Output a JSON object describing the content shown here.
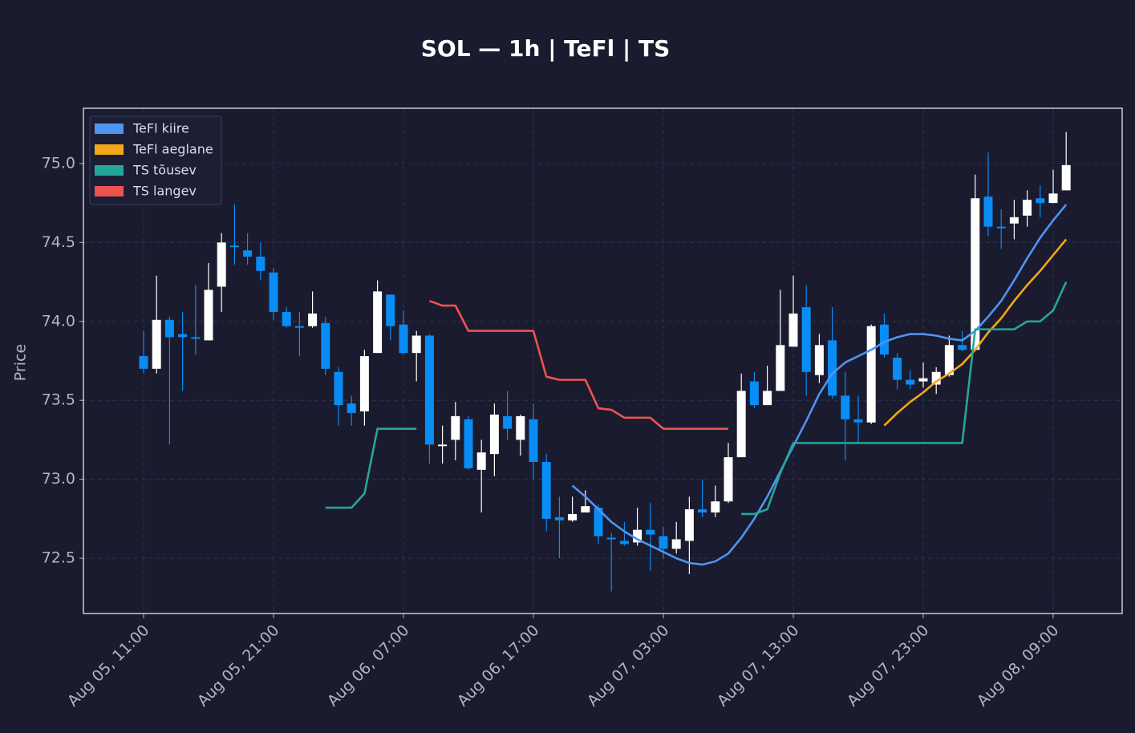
{
  "chart_data": {
    "type": "candlestick",
    "title": "SOL — 1h  |  TeFl  |  TS",
    "ylabel": "Price",
    "categories": [
      "Aug 05, 11:00",
      null,
      null,
      null,
      null,
      null,
      null,
      null,
      null,
      null,
      "Aug 05, 21:00",
      null,
      null,
      null,
      null,
      null,
      null,
      null,
      null,
      null,
      "Aug 06, 07:00",
      null,
      null,
      null,
      null,
      null,
      null,
      null,
      null,
      null,
      "Aug 06, 17:00",
      null,
      null,
      null,
      null,
      null,
      null,
      null,
      null,
      null,
      "Aug 07, 03:00",
      null,
      null,
      null,
      null,
      null,
      null,
      null,
      null,
      null,
      "Aug 07, 13:00",
      null,
      null,
      null,
      null,
      null,
      null,
      null,
      null,
      null,
      "Aug 07, 23:00",
      null,
      null,
      null,
      null,
      null,
      null,
      null,
      null,
      null,
      "Aug 08, 09:00",
      null
    ],
    "open": [
      73.78,
      73.7,
      74.01,
      73.92,
      73.9,
      73.88,
      74.22,
      74.48,
      74.45,
      74.41,
      74.31,
      74.06,
      73.97,
      73.97,
      73.99,
      73.68,
      73.48,
      73.43,
      73.8,
      74.17,
      73.98,
      73.8,
      73.91,
      73.21,
      73.25,
      73.38,
      73.06,
      73.16,
      73.4,
      73.25,
      73.38,
      73.11,
      72.76,
      72.74,
      72.79,
      72.82,
      72.63,
      72.61,
      72.6,
      72.68,
      72.64,
      72.56,
      72.61,
      72.81,
      72.79,
      72.86,
      73.14,
      73.62,
      73.47,
      73.56,
      73.84,
      74.09,
      73.66,
      73.88,
      73.53,
      73.38,
      73.36,
      73.98,
      73.77,
      73.63,
      73.62,
      73.6,
      73.66,
      73.85,
      73.82,
      74.79,
      74.6,
      74.62,
      74.67,
      74.78,
      74.75,
      74.83
    ],
    "high": [
      73.94,
      74.29,
      74.03,
      74.06,
      74.23,
      74.37,
      74.56,
      74.74,
      74.56,
      74.5,
      74.34,
      74.09,
      74.06,
      74.19,
      74.03,
      73.71,
      73.53,
      73.82,
      74.26,
      74.17,
      74.07,
      73.94,
      73.92,
      73.34,
      73.49,
      73.4,
      73.25,
      73.48,
      73.56,
      73.41,
      73.48,
      73.16,
      72.89,
      72.89,
      72.93,
      72.84,
      72.66,
      72.73,
      72.82,
      72.85,
      72.7,
      72.73,
      72.89,
      73.0,
      72.96,
      73.23,
      73.67,
      73.68,
      73.72,
      74.2,
      74.29,
      74.23,
      73.92,
      74.09,
      73.68,
      73.53,
      73.98,
      74.05,
      73.8,
      73.69,
      73.74,
      73.71,
      73.91,
      73.94,
      74.93,
      75.07,
      74.71,
      74.77,
      74.83,
      74.86,
      74.96,
      75.2
    ],
    "low": [
      73.67,
      73.67,
      73.22,
      73.56,
      73.79,
      73.88,
      74.06,
      74.36,
      74.36,
      74.26,
      74.01,
      73.96,
      73.78,
      73.96,
      73.66,
      73.34,
      73.34,
      73.34,
      73.8,
      73.88,
      73.79,
      73.62,
      73.1,
      73.1,
      73.12,
      73.06,
      72.79,
      73.02,
      73.25,
      73.15,
      73.0,
      72.67,
      72.5,
      72.73,
      72.79,
      72.59,
      72.29,
      72.58,
      72.58,
      72.42,
      72.5,
      72.53,
      72.4,
      72.76,
      72.76,
      72.85,
      73.14,
      73.45,
      73.47,
      73.56,
      73.84,
      73.53,
      73.61,
      73.51,
      73.12,
      73.23,
      73.35,
      73.77,
      73.57,
      73.57,
      73.58,
      73.54,
      73.65,
      73.81,
      73.82,
      74.54,
      74.46,
      74.52,
      74.6,
      74.66,
      74.75,
      74.83
    ],
    "close": [
      73.7,
      74.01,
      73.9,
      73.9,
      73.89,
      74.2,
      74.5,
      74.47,
      74.41,
      74.32,
      74.06,
      73.97,
      73.96,
      74.05,
      73.7,
      73.47,
      73.42,
      73.78,
      74.19,
      73.97,
      73.8,
      73.91,
      73.22,
      73.22,
      73.4,
      73.07,
      73.17,
      73.41,
      73.32,
      73.4,
      73.11,
      72.75,
      72.74,
      72.78,
      72.83,
      72.64,
      72.62,
      72.59,
      72.68,
      72.65,
      72.56,
      72.62,
      72.81,
      72.79,
      72.86,
      73.14,
      73.56,
      73.47,
      73.56,
      73.85,
      74.05,
      73.68,
      73.85,
      73.53,
      73.38,
      73.36,
      73.97,
      73.79,
      73.63,
      73.6,
      73.64,
      73.68,
      73.85,
      73.82,
      74.78,
      74.6,
      74.59,
      74.66,
      74.77,
      74.75,
      74.81,
      74.99
    ],
    "up_color": "#ffffff",
    "down_color": "#0a8cf5",
    "series": [
      {
        "name": "TeFl kiire",
        "color": "#4e94f0",
        "values": [
          null,
          null,
          null,
          null,
          null,
          null,
          null,
          null,
          null,
          null,
          null,
          null,
          null,
          null,
          null,
          null,
          null,
          null,
          null,
          null,
          null,
          null,
          null,
          null,
          null,
          null,
          null,
          null,
          null,
          null,
          null,
          null,
          null,
          72.96,
          72.89,
          72.81,
          72.73,
          72.67,
          72.62,
          72.58,
          72.54,
          72.5,
          72.47,
          72.46,
          72.48,
          72.53,
          72.63,
          72.75,
          72.89,
          73.05,
          73.21,
          73.37,
          73.54,
          73.67,
          73.74,
          73.78,
          73.82,
          73.87,
          73.9,
          73.92,
          73.92,
          73.91,
          73.89,
          73.88,
          73.94,
          74.03,
          74.13,
          74.26,
          74.4,
          74.53,
          74.64,
          74.74
        ]
      },
      {
        "name": "TeFl aeglane",
        "color": "#f0a818",
        "values": [
          null,
          null,
          null,
          null,
          null,
          null,
          null,
          null,
          null,
          null,
          null,
          null,
          null,
          null,
          null,
          null,
          null,
          null,
          null,
          null,
          null,
          null,
          null,
          null,
          null,
          null,
          null,
          null,
          null,
          null,
          null,
          null,
          null,
          null,
          null,
          null,
          null,
          null,
          null,
          null,
          null,
          null,
          null,
          null,
          null,
          null,
          null,
          null,
          null,
          null,
          null,
          null,
          null,
          null,
          null,
          null,
          null,
          73.34,
          73.42,
          73.49,
          73.55,
          73.62,
          73.67,
          73.73,
          73.82,
          73.93,
          74.02,
          74.13,
          74.23,
          74.32,
          74.42,
          74.52
        ]
      },
      {
        "name": "TS tõusev",
        "color": "#26a69a",
        "values": [
          null,
          null,
          null,
          null,
          null,
          null,
          null,
          null,
          null,
          null,
          null,
          null,
          null,
          null,
          72.82,
          72.82,
          72.82,
          72.91,
          73.32,
          73.32,
          73.32,
          73.32,
          null,
          null,
          null,
          null,
          null,
          null,
          null,
          null,
          null,
          null,
          null,
          null,
          null,
          null,
          null,
          null,
          null,
          null,
          null,
          null,
          null,
          null,
          null,
          null,
          72.78,
          72.78,
          72.81,
          73.04,
          73.23,
          73.23,
          73.23,
          73.23,
          73.23,
          73.23,
          73.23,
          73.23,
          73.23,
          73.23,
          73.23,
          73.23,
          73.23,
          73.23,
          73.95,
          73.95,
          73.95,
          73.95,
          74.0,
          74.0,
          74.07,
          74.25
        ]
      },
      {
        "name": "TS langev",
        "color": "#ef5350",
        "values": [
          null,
          null,
          null,
          null,
          null,
          null,
          null,
          null,
          null,
          null,
          null,
          null,
          null,
          null,
          null,
          null,
          null,
          null,
          null,
          null,
          null,
          null,
          74.13,
          74.1,
          74.1,
          73.94,
          73.94,
          73.94,
          73.94,
          73.94,
          73.94,
          73.65,
          73.63,
          73.63,
          73.63,
          73.45,
          73.44,
          73.39,
          73.39,
          73.39,
          73.32,
          73.32,
          73.32,
          73.32,
          73.32,
          73.32,
          null,
          null,
          null,
          null,
          null,
          null,
          null,
          null,
          null,
          null,
          null,
          null,
          null,
          null,
          null,
          null,
          null,
          null,
          null,
          null,
          null,
          null,
          null,
          null,
          null,
          null
        ]
      }
    ],
    "ylim": [
      72.15,
      75.35
    ],
    "yticks": [
      72.5,
      {
        "value": 73,
        "label": "73.0"
      },
      73.5,
      {
        "value": 74,
        "label": "74.0"
      },
      74.5,
      {
        "value": 75,
        "label": "75.0"
      }
    ],
    "grid": true,
    "legend": "upper left"
  }
}
